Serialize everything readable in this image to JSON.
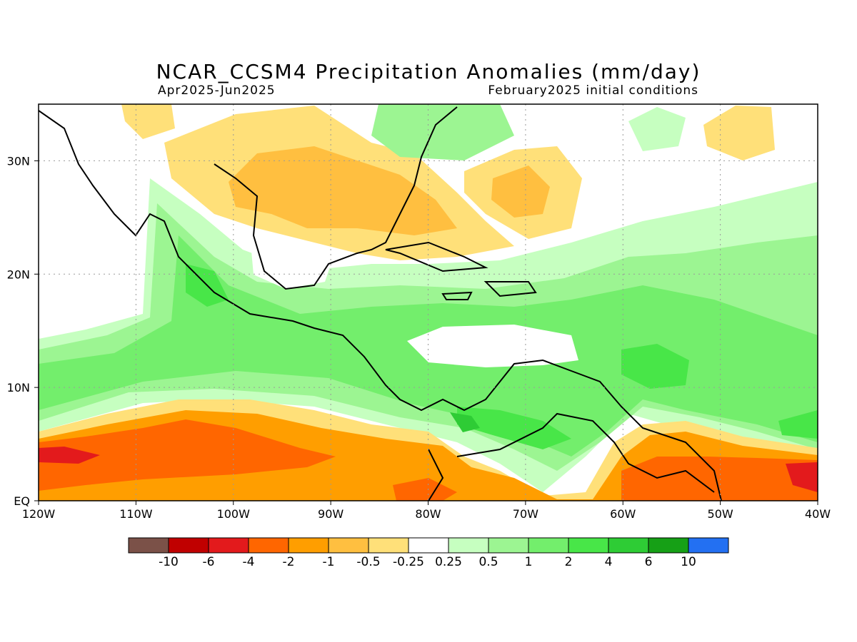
{
  "header": {
    "title": "NCAR_CCSM4 Precipitation Anomalies (mm/day)",
    "period": "Apr2025-Jun2025",
    "init": "February2025 initial conditions"
  },
  "map": {
    "lon_range": [
      -120,
      -40
    ],
    "lat_range": [
      0,
      35
    ],
    "lon_ticks": [
      {
        "value": -120,
        "label": "120W"
      },
      {
        "value": -110,
        "label": "110W"
      },
      {
        "value": -100,
        "label": "100W"
      },
      {
        "value": -90,
        "label": "90W"
      },
      {
        "value": -80,
        "label": "80W"
      },
      {
        "value": -70,
        "label": "70W"
      },
      {
        "value": -60,
        "label": "60W"
      },
      {
        "value": -50,
        "label": "50W"
      },
      {
        "value": -40,
        "label": "40W"
      }
    ],
    "lat_ticks": [
      {
        "value": 0,
        "label": "EQ"
      },
      {
        "value": 10,
        "label": "10N"
      },
      {
        "value": 20,
        "label": "20N"
      },
      {
        "value": 30,
        "label": "30N"
      }
    ]
  },
  "colorbar": {
    "colors": [
      "#7b5148",
      "#c00000",
      "#e31a1c",
      "#ff6600",
      "#ff9e00",
      "#ffbf40",
      "#ffe079",
      "#ffffff",
      "#c6ffc0",
      "#9cf592",
      "#73ee6c",
      "#48e648",
      "#2ecc35",
      "#16a016",
      "#2370f2"
    ],
    "labels": [
      "-10",
      "-6",
      "-4",
      "-2",
      "-1",
      "-0.5",
      "-0.25",
      "0.25",
      "0.5",
      "1",
      "2",
      "4",
      "6",
      "10"
    ]
  }
}
